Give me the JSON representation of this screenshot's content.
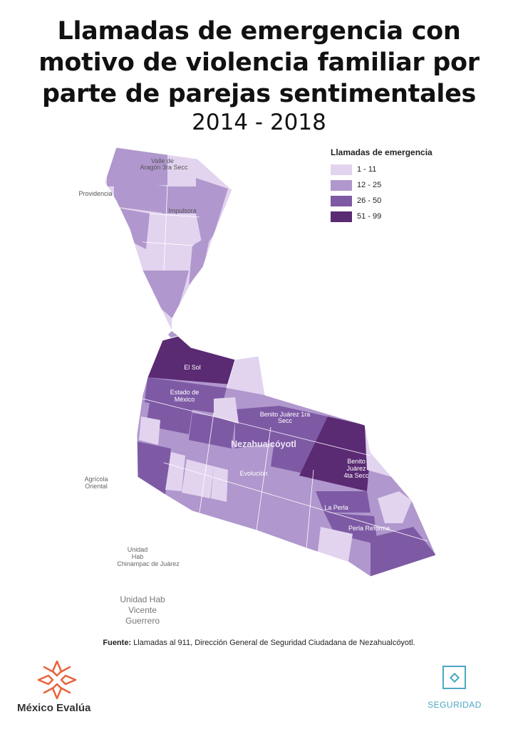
{
  "title_lines": [
    "Llamadas de emergencia con",
    "motivo de violencia familiar por",
    "parte de parejas sentimentales"
  ],
  "subtitle": "2014 - 2018",
  "legend": {
    "title": "Llamadas de emergencia",
    "classes": [
      {
        "label": "1 - 11",
        "color": "#e2d4ef"
      },
      {
        "label": "12 - 25",
        "color": "#b097cd"
      },
      {
        "label": "26 - 50",
        "color": "#7e5aa5"
      },
      {
        "label": "51 - 99",
        "color": "#5a2a73"
      }
    ]
  },
  "map_labels": {
    "valle_line1": "Valle de",
    "valle_line2": "Aragón 3ra Secc",
    "providencia": "Providencia",
    "impulsora": "Impulsora",
    "el_sol": "El Sol",
    "estado_line1": "Estado de",
    "estado_line2": "México",
    "benito1_line1": "Benito Juárez 1ra",
    "benito1_line2": "Secc",
    "nezahualcoyotl": "Nezahualcóyotl",
    "evolucion": "Evolución",
    "benito4_line1": "Benito",
    "benito4_line2": "Juárez",
    "benito4_line3": "4ta Secc",
    "la_perla": "La Perla",
    "perla_reforma": "Perla Reforma",
    "agricola_line1": "Agrícola",
    "agricola_line2": "Oriental",
    "chinampac_line1": "Unidad",
    "chinampac_line2": "Hab",
    "chinampac_line3": "Chinampac de Juárez",
    "vicente_line1": "Unidad Hab",
    "vicente_line2": "Vicente",
    "vicente_line3": "Guerrero"
  },
  "source": {
    "prefix": "Fuente:",
    "text": "Llamadas al 911, Dirección General de Seguridad Ciudadana de Nezahualcóyotl."
  },
  "brand": {
    "name": "México Evalúa",
    "accent_color": "#e8633a"
  },
  "section": {
    "label": "SEGURIDAD",
    "color": "#4aa7c2"
  }
}
